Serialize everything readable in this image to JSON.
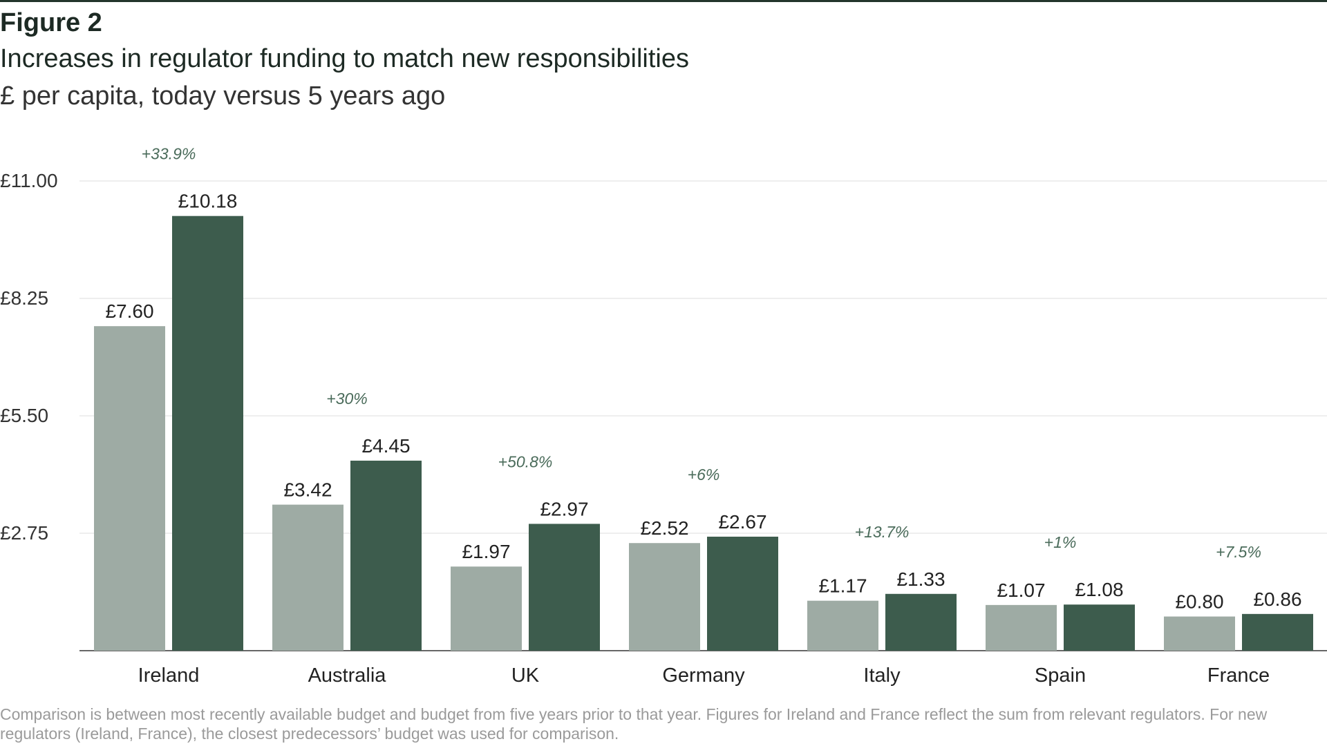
{
  "figure": {
    "label": "Figure 2",
    "title": "Increases in regulator funding to match new responsibilities",
    "subtitle": "£ per capita, today versus 5 years ago",
    "footnote": "Comparison is between most recently available budget and budget from five years prior to that year. Figures for Ireland and France reflect the sum from relevant regulators. For new regulators (Ireland, France), the closest predecessors’ budget was used for comparison."
  },
  "colors": {
    "five_years_ago": "#9eaba4",
    "today": "#3d5c4d",
    "change_label": "#4a6b5a",
    "grid": "#dddddd",
    "axis": "#333333"
  },
  "chart_data": {
    "type": "bar",
    "title": "Increases in regulator funding to match new responsibilities",
    "subtitle": "£ per capita, today versus 5 years ago",
    "categories": [
      "Ireland",
      "Australia",
      "UK",
      "Germany",
      "Italy",
      "Spain",
      "France"
    ],
    "series": [
      {
        "name": "5 years ago",
        "values": [
          7.6,
          3.42,
          1.97,
          2.52,
          1.17,
          1.07,
          0.8
        ],
        "labels": [
          "£7.60",
          "£3.42",
          "£1.97",
          "£2.52",
          "£1.17",
          "£1.07",
          "£0.80"
        ]
      },
      {
        "name": "Today",
        "values": [
          10.18,
          4.45,
          2.97,
          2.67,
          1.33,
          1.08,
          0.86
        ],
        "labels": [
          "£10.18",
          "£4.45",
          "£2.97",
          "£2.67",
          "£1.33",
          "£1.08",
          "£0.86"
        ]
      }
    ],
    "change_labels": [
      "+33.9%",
      "+30%",
      "+50.8%",
      "+6%",
      "+13.7%",
      "+1%",
      "+7.5%"
    ],
    "yticks": [
      2.75,
      5.5,
      8.25,
      11.0
    ],
    "ytick_labels": [
      "£2.75",
      "£5.50",
      "£8.25",
      "£11.00"
    ],
    "ylim": [
      0,
      11
    ],
    "xlabel": "",
    "ylabel": "",
    "grid": true
  }
}
